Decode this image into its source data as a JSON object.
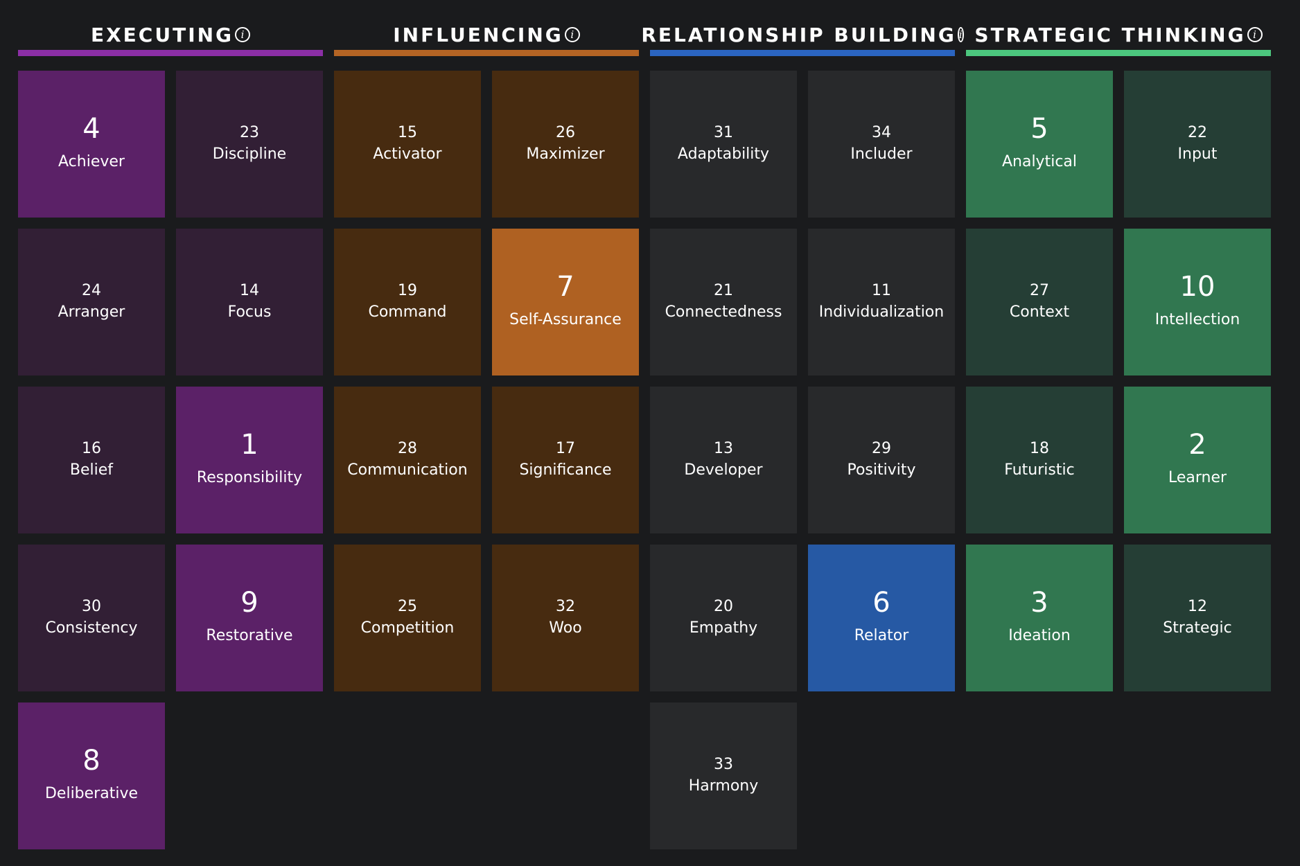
{
  "domains": [
    {
      "key": "executing",
      "title": "EXECUTING",
      "info_icon": "info-icon",
      "accent": "#8c2fa6",
      "top_color": "#5b2167",
      "dim_color": "#321f35",
      "themes": [
        {
          "rank": "4",
          "name": "Achiever",
          "top": true
        },
        {
          "rank": "23",
          "name": "Discipline",
          "top": false
        },
        {
          "rank": "24",
          "name": "Arranger",
          "top": false
        },
        {
          "rank": "14",
          "name": "Focus",
          "top": false
        },
        {
          "rank": "16",
          "name": "Belief",
          "top": false
        },
        {
          "rank": "1",
          "name": "Responsibility",
          "top": true
        },
        {
          "rank": "30",
          "name": "Consistency",
          "top": false
        },
        {
          "rank": "9",
          "name": "Restorative",
          "top": true
        },
        {
          "rank": "8",
          "name": "Deliberative",
          "top": true
        }
      ]
    },
    {
      "key": "influencing",
      "title": "INFLUENCING",
      "info_icon": "info-icon",
      "accent": "#b46424",
      "top_color": "#af6122",
      "dim_color": "#472b10",
      "themes": [
        {
          "rank": "15",
          "name": "Activator",
          "top": false
        },
        {
          "rank": "26",
          "name": "Maximizer",
          "top": false
        },
        {
          "rank": "19",
          "name": "Command",
          "top": false
        },
        {
          "rank": "7",
          "name": "Self-Assurance",
          "top": true
        },
        {
          "rank": "28",
          "name": "Communication",
          "top": false
        },
        {
          "rank": "17",
          "name": "Significance",
          "top": false
        },
        {
          "rank": "25",
          "name": "Competition",
          "top": false
        },
        {
          "rank": "32",
          "name": "Woo",
          "top": false
        }
      ]
    },
    {
      "key": "relationship_building",
      "title": "RELATIONSHIP BUILDING",
      "info_icon": "info-icon",
      "accent": "#2b65c1",
      "top_color": "#2659a4",
      "dim_color": "#28292b",
      "themes": [
        {
          "rank": "31",
          "name": "Adaptability",
          "top": false
        },
        {
          "rank": "34",
          "name": "Includer",
          "top": false
        },
        {
          "rank": "21",
          "name": "Connectedness",
          "top": false
        },
        {
          "rank": "11",
          "name": "Individualization",
          "top": false
        },
        {
          "rank": "13",
          "name": "Developer",
          "top": false
        },
        {
          "rank": "29",
          "name": "Positivity",
          "top": false
        },
        {
          "rank": "20",
          "name": "Empathy",
          "top": false
        },
        {
          "rank": "6",
          "name": "Relator",
          "top": true
        },
        {
          "rank": "33",
          "name": "Harmony",
          "top": false
        }
      ]
    },
    {
      "key": "strategic_thinking",
      "title": "STRATEGIC THINKING",
      "info_icon": "info-icon",
      "accent": "#4cc77e",
      "top_color": "#317750",
      "dim_color": "#253e35",
      "themes": [
        {
          "rank": "5",
          "name": "Analytical",
          "top": true
        },
        {
          "rank": "22",
          "name": "Input",
          "top": false
        },
        {
          "rank": "27",
          "name": "Context",
          "top": false
        },
        {
          "rank": "10",
          "name": "Intellection",
          "top": true
        },
        {
          "rank": "18",
          "name": "Futuristic",
          "top": false
        },
        {
          "rank": "2",
          "name": "Learner",
          "top": true
        },
        {
          "rank": "3",
          "name": "Ideation",
          "top": true
        },
        {
          "rank": "12",
          "name": "Strategic",
          "top": false
        }
      ]
    }
  ]
}
